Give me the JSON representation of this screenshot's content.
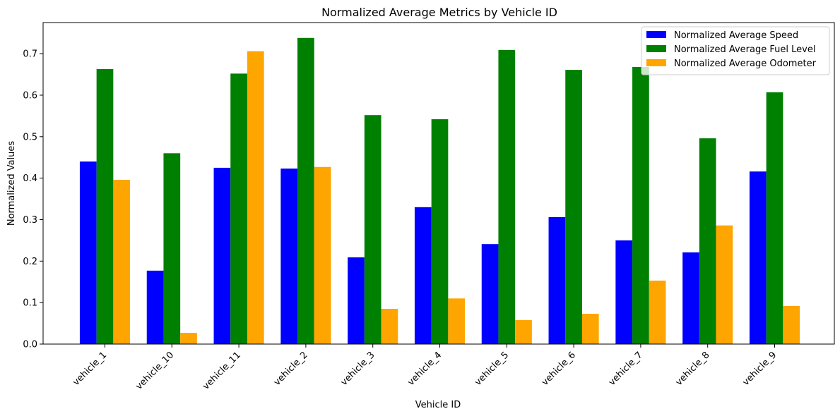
{
  "chart_data": {
    "type": "bar",
    "title": "Normalized Average Metrics by Vehicle ID",
    "xlabel": "Vehicle ID",
    "ylabel": "Normalized Values",
    "ylim": [
      0,
      0.775
    ],
    "yticks": [
      "0.0",
      "0.1",
      "0.2",
      "0.3",
      "0.4",
      "0.5",
      "0.6",
      "0.7"
    ],
    "categories": [
      "vehicle_1",
      "vehicle_10",
      "vehicle_11",
      "vehicle_2",
      "vehicle_3",
      "vehicle_4",
      "vehicle_5",
      "vehicle_6",
      "vehicle_7",
      "vehicle_8",
      "vehicle_9"
    ],
    "series": [
      {
        "name": "Normalized Average Speed",
        "color": "#0000ff",
        "values": [
          0.44,
          0.177,
          0.425,
          0.423,
          0.209,
          0.33,
          0.241,
          0.306,
          0.25,
          0.221,
          0.416
        ]
      },
      {
        "name": "Normalized Average Fuel Level",
        "color": "#008000",
        "values": [
          0.663,
          0.46,
          0.652,
          0.738,
          0.552,
          0.542,
          0.709,
          0.661,
          0.668,
          0.496,
          0.607
        ]
      },
      {
        "name": "Normalized Average Odometer",
        "color": "#ffa500",
        "values": [
          0.396,
          0.027,
          0.706,
          0.427,
          0.085,
          0.11,
          0.058,
          0.073,
          0.153,
          0.286,
          0.092
        ]
      }
    ],
    "legend_position": "top-right",
    "grid": false
  }
}
